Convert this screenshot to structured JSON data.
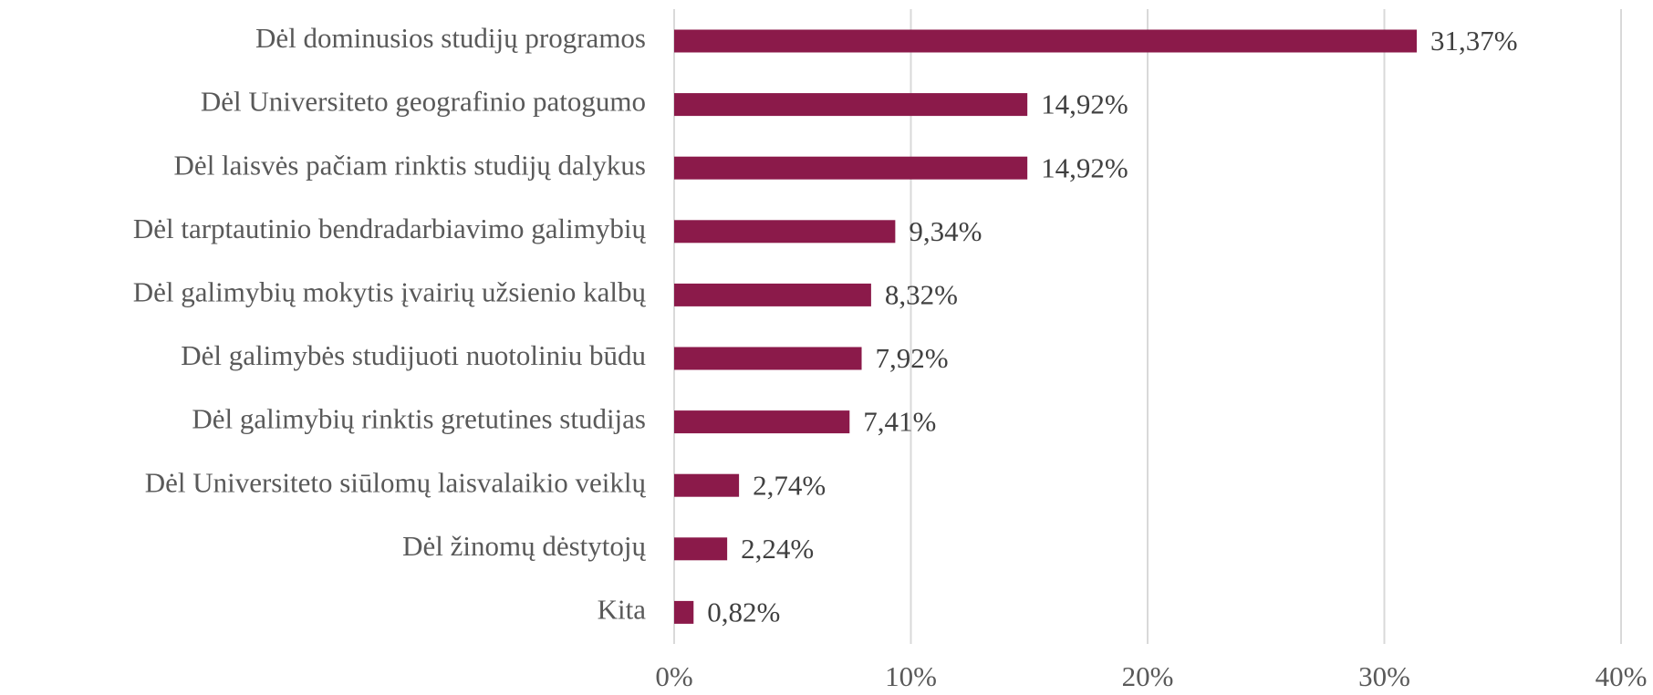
{
  "chart_data": {
    "type": "bar",
    "orientation": "horizontal",
    "categories": [
      "Dėl dominusios studijų programos",
      "Dėl Universiteto geografinio patogumo",
      "Dėl laisvės pačiam rinktis studijų dalykus",
      "Dėl tarptautinio bendradarbiavimo galimybių",
      "Dėl galimybių mokytis įvairių užsienio kalbų",
      "Dėl galimybės studijuoti nuotoliniu būdu",
      "Dėl galimybių rinktis gretutines studijas",
      "Dėl Universiteto siūlomų laisvalaikio veiklų",
      "Dėl žinomų dėstytojų",
      "Kita"
    ],
    "values": [
      31.37,
      14.92,
      14.92,
      9.34,
      8.32,
      7.92,
      7.41,
      2.74,
      2.24,
      0.82
    ],
    "value_labels": [
      "31,37%",
      "14,92%",
      "14,92%",
      "9,34%",
      "8,32%",
      "7,92%",
      "7,41%",
      "2,74%",
      "2,24%",
      "0,82%"
    ],
    "color": "#8b1a4a",
    "xlim": [
      0,
      40
    ],
    "xticks": [
      {
        "value": 0,
        "label": "0%"
      },
      {
        "value": 10,
        "label": "10%"
      },
      {
        "value": 20,
        "label": "20%"
      },
      {
        "value": 30,
        "label": "30%"
      },
      {
        "value": 40,
        "label": "40%"
      }
    ],
    "grid": true
  }
}
